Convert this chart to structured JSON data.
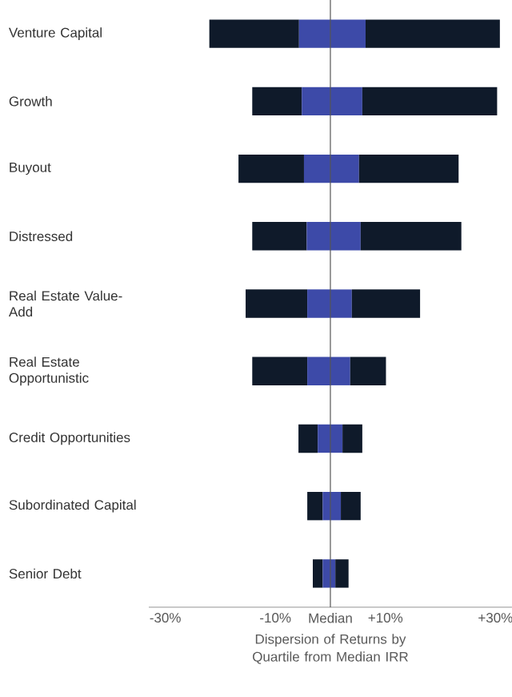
{
  "chart_data": {
    "type": "bar",
    "orientation": "horizontal",
    "xlabel": "Dispersion of Returns by Quartile from Median IRR",
    "categories": [
      "Venture Capital",
      "Growth",
      "Buyout",
      "Distressed",
      "Real Estate Value-Add",
      "Real Estate Opportunistic",
      "Credit Opportunities",
      "Subordinated Capital",
      "Senior Debt"
    ],
    "series": [
      {
        "color": "#0f1a2a",
        "base": [
          -22.0,
          -14.2,
          -16.7,
          -14.2,
          -15.4,
          -14.2,
          -5.8,
          -4.2,
          -3.2
        ],
        "values": [
          16.3,
          9.0,
          11.9,
          9.9,
          11.2,
          10.0,
          3.5,
          2.8,
          1.8
        ]
      },
      {
        "color": "#3d4aa8",
        "base": [
          -5.7,
          -5.2,
          -4.8,
          -4.3,
          -4.2,
          -4.2,
          -2.3,
          -1.4,
          -1.4
        ],
        "values": [
          5.7,
          5.2,
          4.8,
          4.3,
          4.2,
          4.2,
          2.3,
          1.4,
          1.4
        ]
      },
      {
        "color": "#3d4aa8",
        "base": [
          0,
          0,
          0,
          0,
          0,
          0,
          0,
          0,
          0
        ],
        "values": [
          6.4,
          5.8,
          5.2,
          5.5,
          3.9,
          3.6,
          2.2,
          1.9,
          0.9
        ]
      },
      {
        "color": "#0f1a2a",
        "base": [
          6.4,
          5.8,
          5.2,
          5.5,
          3.9,
          3.6,
          2.2,
          1.9,
          0.9
        ],
        "values": [
          24.4,
          24.5,
          18.1,
          18.3,
          12.4,
          6.5,
          3.6,
          3.6,
          2.4
        ]
      }
    ],
    "xlim": [
      -33,
      33
    ],
    "xticks": [
      {
        "value": -30,
        "label": "-30%"
      },
      {
        "value": -10,
        "label": "-10%"
      },
      {
        "value": 0,
        "label": "Median"
      },
      {
        "value": 10,
        "label": "+10%"
      },
      {
        "value": 30,
        "label": "+30%"
      }
    ],
    "ref_lines": [
      {
        "axis": "x",
        "value": 0,
        "color": "#555555"
      }
    ]
  }
}
